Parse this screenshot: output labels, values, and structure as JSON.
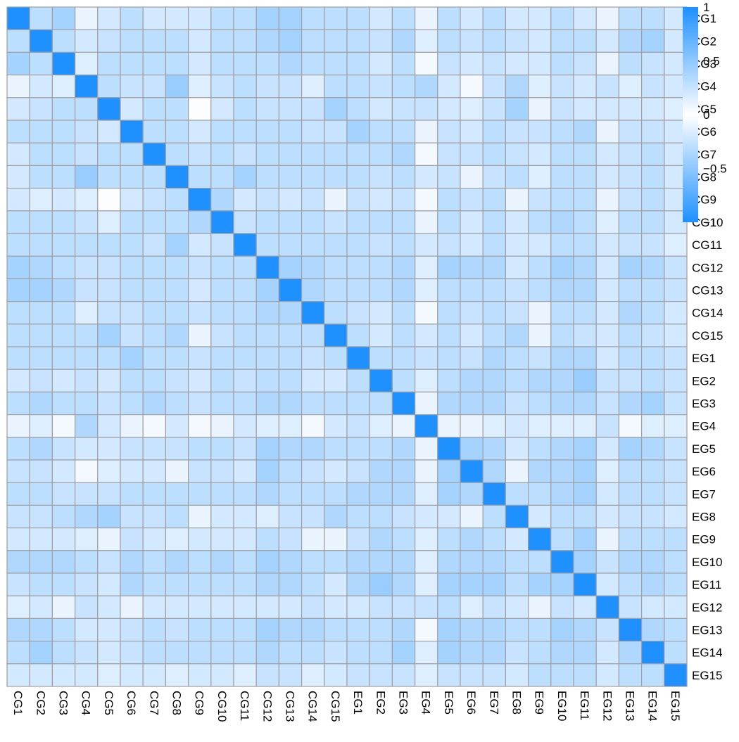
{
  "chart_data": {
    "type": "heatmap",
    "title": "",
    "row_labels": [
      "CG1",
      "CG2",
      "CG3",
      "CG4",
      "CG5",
      "CG6",
      "CG7",
      "CG8",
      "CG9",
      "CG10",
      "CG11",
      "CG12",
      "CG13",
      "CG14",
      "CG15",
      "EG1",
      "EG2",
      "EG3",
      "EG4",
      "EG5",
      "EG6",
      "EG7",
      "EG8",
      "EG9",
      "EG10",
      "EG11",
      "EG12",
      "EG13",
      "EG14",
      "EG15"
    ],
    "col_labels": [
      "CG1",
      "CG2",
      "CG3",
      "CG4",
      "CG5",
      "CG6",
      "CG7",
      "CG8",
      "CG9",
      "CG10",
      "CG11",
      "CG12",
      "CG13",
      "CG14",
      "CG15",
      "EG1",
      "EG2",
      "EG3",
      "EG4",
      "EG5",
      "EG6",
      "EG7",
      "EG8",
      "EG9",
      "EG10",
      "EG11",
      "EG12",
      "EG13",
      "EG14",
      "EG15"
    ],
    "values": [
      [
        1,
        0.3,
        0.4,
        0.1,
        0.2,
        0.3,
        0.2,
        0.2,
        0.2,
        0.3,
        0.3,
        0.4,
        0.4,
        0.3,
        0.3,
        0.3,
        0.2,
        0.3,
        0.1,
        0.3,
        0.2,
        0.3,
        0.2,
        0.2,
        0.3,
        0.2,
        0.1,
        0.3,
        0.3,
        0.2
      ],
      [
        0.3,
        1,
        0.3,
        0.2,
        0.25,
        0.3,
        0.3,
        0.3,
        0.2,
        0.3,
        0.3,
        0.35,
        0.4,
        0.3,
        0.3,
        0.3,
        0.25,
        0.35,
        0.15,
        0.3,
        0.25,
        0.3,
        0.25,
        0.2,
        0.3,
        0.3,
        0.2,
        0.35,
        0.4,
        0.2
      ],
      [
        0.4,
        0.3,
        1,
        0.15,
        0.3,
        0.3,
        0.3,
        0.3,
        0.2,
        0.3,
        0.3,
        0.3,
        0.35,
        0.3,
        0.3,
        0.3,
        0.2,
        0.3,
        0.05,
        0.25,
        0.2,
        0.25,
        0.2,
        0.2,
        0.3,
        0.25,
        0.1,
        0.3,
        0.25,
        0.2
      ],
      [
        0.1,
        0.2,
        0.15,
        1,
        0.3,
        0.25,
        0.25,
        0.45,
        0.15,
        0.25,
        0.3,
        0.25,
        0.25,
        0.15,
        0.3,
        0.3,
        0.25,
        0.3,
        0.35,
        0.2,
        0.05,
        0.25,
        0.35,
        0.15,
        0.25,
        0.2,
        0.25,
        0.15,
        0.25,
        0.2
      ],
      [
        0.2,
        0.25,
        0.3,
        0.3,
        1,
        0.2,
        0.3,
        0.3,
        0.02,
        0.2,
        0.3,
        0.25,
        0.25,
        0.25,
        0.4,
        0.3,
        0.2,
        0.25,
        0.25,
        0.2,
        0.15,
        0.25,
        0.4,
        0.1,
        0.25,
        0.2,
        0.2,
        0.2,
        0.2,
        0.15
      ],
      [
        0.3,
        0.3,
        0.3,
        0.25,
        0.2,
        1,
        0.3,
        0.3,
        0.2,
        0.3,
        0.3,
        0.3,
        0.3,
        0.25,
        0.25,
        0.4,
        0.3,
        0.3,
        0.1,
        0.25,
        0.2,
        0.3,
        0.25,
        0.25,
        0.3,
        0.35,
        0.1,
        0.25,
        0.25,
        0.2
      ],
      [
        0.2,
        0.3,
        0.3,
        0.25,
        0.3,
        0.3,
        1,
        0.3,
        0.25,
        0.3,
        0.25,
        0.3,
        0.3,
        0.3,
        0.3,
        0.3,
        0.3,
        0.35,
        0.05,
        0.25,
        0.25,
        0.3,
        0.25,
        0.2,
        0.3,
        0.3,
        0.2,
        0.25,
        0.3,
        0.2
      ],
      [
        0.2,
        0.3,
        0.3,
        0.45,
        0.3,
        0.3,
        0.3,
        1,
        0.3,
        0.3,
        0.4,
        0.3,
        0.3,
        0.3,
        0.3,
        0.3,
        0.25,
        0.3,
        0.2,
        0.25,
        0.1,
        0.25,
        0.3,
        0.15,
        0.3,
        0.3,
        0.2,
        0.25,
        0.3,
        0.2
      ],
      [
        0.2,
        0.15,
        0.2,
        0.15,
        0.02,
        0.2,
        0.25,
        0.3,
        1,
        0.35,
        0.2,
        0.25,
        0.2,
        0.25,
        0.1,
        0.25,
        0.2,
        0.25,
        0.05,
        0.3,
        0.25,
        0.3,
        0.1,
        0.25,
        0.3,
        0.3,
        0.1,
        0.25,
        0.3,
        0.2
      ],
      [
        0.3,
        0.3,
        0.3,
        0.25,
        0.15,
        0.3,
        0.3,
        0.3,
        0.35,
        1,
        0.25,
        0.3,
        0.3,
        0.3,
        0.25,
        0.3,
        0.3,
        0.3,
        0.1,
        0.3,
        0.2,
        0.3,
        0.2,
        0.3,
        0.35,
        0.3,
        0.15,
        0.3,
        0.3,
        0.2
      ],
      [
        0.3,
        0.3,
        0.3,
        0.3,
        0.3,
        0.3,
        0.25,
        0.4,
        0.2,
        0.25,
        1,
        0.3,
        0.3,
        0.3,
        0.3,
        0.3,
        0.25,
        0.3,
        0.2,
        0.25,
        0.2,
        0.3,
        0.2,
        0.2,
        0.3,
        0.3,
        0.2,
        0.25,
        0.25,
        0.15
      ],
      [
        0.4,
        0.35,
        0.3,
        0.25,
        0.25,
        0.3,
        0.3,
        0.3,
        0.25,
        0.3,
        0.3,
        1,
        0.4,
        0.35,
        0.3,
        0.3,
        0.3,
        0.35,
        0.15,
        0.4,
        0.35,
        0.35,
        0.2,
        0.3,
        0.4,
        0.35,
        0.2,
        0.4,
        0.35,
        0.25
      ],
      [
        0.4,
        0.4,
        0.35,
        0.25,
        0.25,
        0.3,
        0.3,
        0.3,
        0.2,
        0.3,
        0.3,
        0.4,
        1,
        0.35,
        0.3,
        0.3,
        0.3,
        0.35,
        0.15,
        0.3,
        0.3,
        0.3,
        0.25,
        0.3,
        0.35,
        0.35,
        0.2,
        0.3,
        0.3,
        0.25
      ],
      [
        0.3,
        0.3,
        0.3,
        0.15,
        0.25,
        0.25,
        0.3,
        0.3,
        0.25,
        0.3,
        0.3,
        0.35,
        0.35,
        1,
        0.3,
        0.25,
        0.2,
        0.3,
        0.05,
        0.3,
        0.25,
        0.3,
        0.25,
        0.1,
        0.3,
        0.3,
        0.2,
        0.35,
        0.3,
        0.2
      ],
      [
        0.3,
        0.3,
        0.3,
        0.3,
        0.4,
        0.25,
        0.3,
        0.35,
        0.1,
        0.25,
        0.3,
        0.3,
        0.3,
        0.3,
        1,
        0.3,
        0.2,
        0.3,
        0.2,
        0.3,
        0.2,
        0.3,
        0.35,
        0.1,
        0.3,
        0.25,
        0.2,
        0.3,
        0.25,
        0.2
      ],
      [
        0.3,
        0.3,
        0.3,
        0.3,
        0.3,
        0.4,
        0.3,
        0.3,
        0.25,
        0.3,
        0.3,
        0.3,
        0.3,
        0.25,
        0.3,
        1,
        0.3,
        0.3,
        0.25,
        0.3,
        0.25,
        0.35,
        0.3,
        0.25,
        0.35,
        0.35,
        0.2,
        0.3,
        0.3,
        0.25
      ],
      [
        0.2,
        0.25,
        0.2,
        0.25,
        0.2,
        0.3,
        0.3,
        0.25,
        0.2,
        0.3,
        0.25,
        0.3,
        0.3,
        0.2,
        0.2,
        0.3,
        1,
        0.3,
        0.15,
        0.3,
        0.35,
        0.35,
        0.3,
        0.35,
        0.35,
        0.45,
        0.25,
        0.25,
        0.3,
        0.25
      ],
      [
        0.3,
        0.35,
        0.3,
        0.3,
        0.25,
        0.3,
        0.35,
        0.3,
        0.25,
        0.3,
        0.3,
        0.35,
        0.35,
        0.3,
        0.3,
        0.3,
        0.3,
        1,
        0.1,
        0.35,
        0.35,
        0.35,
        0.25,
        0.3,
        0.35,
        0.35,
        0.25,
        0.35,
        0.4,
        0.25
      ],
      [
        0.1,
        0.15,
        0.05,
        0.35,
        0.2,
        0.1,
        0.05,
        0.2,
        0.05,
        0.1,
        0.2,
        0.15,
        0.15,
        0.05,
        0.2,
        0.25,
        0.15,
        0.1,
        1,
        0.1,
        0.1,
        0.15,
        0.2,
        0.15,
        0.15,
        0.15,
        0.25,
        0.05,
        0.15,
        0.15
      ],
      [
        0.3,
        0.35,
        0.25,
        0.2,
        0.2,
        0.25,
        0.25,
        0.25,
        0.3,
        0.3,
        0.25,
        0.4,
        0.35,
        0.35,
        0.3,
        0.3,
        0.3,
        0.35,
        0.1,
        1,
        0.4,
        0.35,
        0.2,
        0.3,
        0.35,
        0.4,
        0.2,
        0.4,
        0.35,
        0.25
      ],
      [
        0.25,
        0.25,
        0.2,
        0.05,
        0.15,
        0.2,
        0.2,
        0.1,
        0.25,
        0.25,
        0.2,
        0.4,
        0.3,
        0.25,
        0.2,
        0.25,
        0.35,
        0.35,
        0.1,
        0.4,
        1,
        0.35,
        0.1,
        0.35,
        0.35,
        0.4,
        0.15,
        0.3,
        0.3,
        0.25
      ],
      [
        0.3,
        0.3,
        0.25,
        0.25,
        0.25,
        0.3,
        0.3,
        0.3,
        0.3,
        0.3,
        0.3,
        0.35,
        0.3,
        0.3,
        0.3,
        0.35,
        0.35,
        0.35,
        0.15,
        0.4,
        0.35,
        1,
        0.3,
        0.3,
        0.35,
        0.4,
        0.2,
        0.3,
        0.3,
        0.25
      ],
      [
        0.25,
        0.25,
        0.3,
        0.35,
        0.4,
        0.25,
        0.25,
        0.3,
        0.1,
        0.2,
        0.2,
        0.15,
        0.25,
        0.25,
        0.35,
        0.3,
        0.3,
        0.25,
        0.2,
        0.2,
        0.1,
        0.3,
        1,
        0.2,
        0.3,
        0.3,
        0.2,
        0.25,
        0.25,
        0.2
      ],
      [
        0.2,
        0.2,
        0.2,
        0.15,
        0.1,
        0.25,
        0.2,
        0.15,
        0.2,
        0.2,
        0.2,
        0.3,
        0.25,
        0.1,
        0.1,
        0.25,
        0.35,
        0.3,
        0.15,
        0.3,
        0.35,
        0.3,
        0.2,
        1,
        0.3,
        0.4,
        0.1,
        0.3,
        0.3,
        0.3
      ],
      [
        0.35,
        0.35,
        0.35,
        0.3,
        0.25,
        0.35,
        0.3,
        0.35,
        0.3,
        0.35,
        0.3,
        0.4,
        0.35,
        0.3,
        0.3,
        0.35,
        0.35,
        0.35,
        0.15,
        0.35,
        0.35,
        0.35,
        0.3,
        0.3,
        1,
        0.4,
        0.25,
        0.35,
        0.35,
        0.3
      ],
      [
        0.25,
        0.3,
        0.3,
        0.25,
        0.2,
        0.35,
        0.3,
        0.3,
        0.3,
        0.3,
        0.3,
        0.35,
        0.35,
        0.3,
        0.2,
        0.35,
        0.45,
        0.35,
        0.15,
        0.4,
        0.4,
        0.4,
        0.3,
        0.4,
        0.4,
        1,
        0.2,
        0.3,
        0.35,
        0.3
      ],
      [
        0.15,
        0.2,
        0.1,
        0.25,
        0.2,
        0.1,
        0.2,
        0.2,
        0.2,
        0.2,
        0.2,
        0.2,
        0.2,
        0.25,
        0.2,
        0.2,
        0.25,
        0.25,
        0.25,
        0.3,
        0.15,
        0.25,
        0.2,
        0.1,
        0.25,
        0.2,
        1,
        0.25,
        0.2,
        0.2
      ],
      [
        0.35,
        0.35,
        0.3,
        0.2,
        0.2,
        0.25,
        0.3,
        0.25,
        0.3,
        0.3,
        0.3,
        0.4,
        0.35,
        0.35,
        0.3,
        0.3,
        0.3,
        0.35,
        0.05,
        0.4,
        0.35,
        0.35,
        0.3,
        0.3,
        0.4,
        0.35,
        0.25,
        1,
        0.35,
        0.3
      ],
      [
        0.3,
        0.4,
        0.3,
        0.25,
        0.2,
        0.25,
        0.3,
        0.3,
        0.3,
        0.3,
        0.3,
        0.35,
        0.3,
        0.3,
        0.25,
        0.3,
        0.3,
        0.4,
        0.15,
        0.4,
        0.35,
        0.35,
        0.25,
        0.3,
        0.35,
        0.35,
        0.2,
        0.35,
        1,
        0.3
      ],
      [
        0.2,
        0.2,
        0.2,
        0.2,
        0.15,
        0.2,
        0.2,
        0.15,
        0.2,
        0.2,
        0.15,
        0.25,
        0.25,
        0.15,
        0.2,
        0.25,
        0.25,
        0.25,
        0.15,
        0.25,
        0.25,
        0.25,
        0.2,
        0.3,
        0.3,
        0.3,
        0.2,
        0.3,
        0.3,
        1
      ]
    ],
    "color_scale": {
      "min": -1,
      "max": 1,
      "negative_color": "#1E90FF",
      "zero_color": "#FFFFFF",
      "positive_color": "#1E90FF"
    },
    "legend": {
      "ticks": [
        1,
        0.5,
        0,
        -0.5,
        -1
      ],
      "tick_labels": [
        "1",
        "0.5",
        "0",
        "−0.5",
        "−1"
      ],
      "placement": "top-right"
    },
    "cell_border_color": "#A0A0A0"
  }
}
